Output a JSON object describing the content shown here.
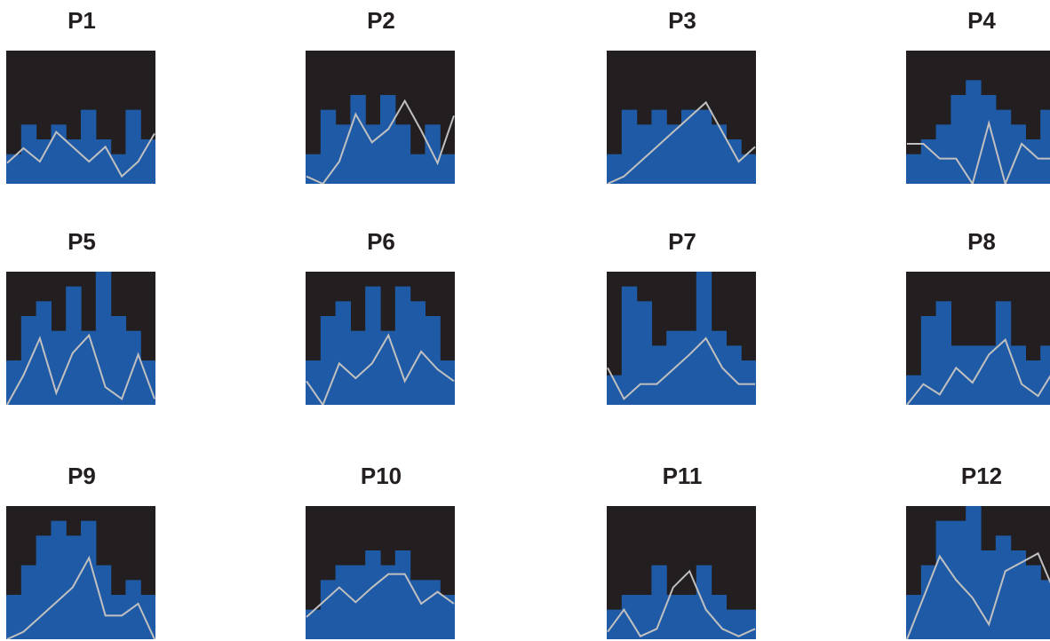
{
  "colors": {
    "background": "#231f20",
    "bar": "#1f5aa6",
    "line": "#c0c0c0",
    "title": "#231f20"
  },
  "chart_data": [
    {
      "type": "bar",
      "title": "P1",
      "ylim": [
        0,
        9
      ],
      "bars": [
        2,
        4,
        3,
        4,
        3,
        5,
        3,
        2,
        5,
        3
      ],
      "line": [
        1.4,
        2.4,
        1.5,
        3.5,
        2.5,
        1.5,
        2.5,
        0.5,
        1.5,
        3.4
      ]
    },
    {
      "type": "bar",
      "title": "P2",
      "ylim": [
        0,
        9
      ],
      "bars": [
        2,
        5,
        4,
        6,
        4,
        6,
        4,
        2,
        4,
        2
      ],
      "line": [
        0.5,
        0,
        1.5,
        4.7,
        2.8,
        3.7,
        5.6,
        3.6,
        1.4,
        4.6
      ]
    },
    {
      "type": "bar",
      "title": "P3",
      "ylim": [
        0,
        9
      ],
      "bars": [
        2,
        5,
        4,
        5,
        4,
        5,
        5,
        4,
        3,
        2
      ],
      "line": [
        0,
        0.5,
        1.5,
        2.5,
        3.5,
        4.5,
        5.5,
        3.5,
        1.5,
        2.5
      ]
    },
    {
      "type": "bar",
      "title": "P4",
      "ylim": [
        0,
        9
      ],
      "bars": [
        2,
        3,
        4,
        6,
        7,
        6,
        5,
        4,
        3,
        5
      ],
      "line": [
        2.7,
        2.7,
        1.7,
        1.7,
        0,
        4.1,
        0,
        2.7,
        1.7,
        1.7
      ]
    },
    {
      "type": "bar",
      "title": "P5",
      "ylim": [
        0,
        9
      ],
      "bars": [
        3,
        6,
        7,
        5,
        8,
        5,
        9,
        6,
        5,
        3
      ],
      "line": [
        0,
        2,
        4.5,
        0.8,
        3.5,
        4.7,
        1.2,
        0.4,
        3.4,
        0.4
      ]
    },
    {
      "type": "bar",
      "title": "P6",
      "ylim": [
        0,
        9
      ],
      "bars": [
        3,
        6,
        7,
        5,
        8,
        5,
        8,
        7,
        6,
        3
      ],
      "line": [
        1.6,
        0,
        2.8,
        1.8,
        2.8,
        4.7,
        1.6,
        3.6,
        2.4,
        1.6
      ]
    },
    {
      "type": "bar",
      "title": "P7",
      "ylim": [
        0,
        9
      ],
      "bars": [
        2,
        8,
        7,
        4,
        5,
        5,
        9,
        5,
        4,
        3
      ],
      "line": [
        2.5,
        0.4,
        1.4,
        1.4,
        2.4,
        3.4,
        4.5,
        2.5,
        1.4,
        1.4
      ]
    },
    {
      "type": "bar",
      "title": "P8",
      "ylim": [
        0,
        9
      ],
      "bars": [
        2,
        6,
        7,
        4,
        4,
        4,
        7,
        4,
        3,
        4
      ],
      "line": [
        0,
        1.4,
        0.7,
        2.5,
        1.5,
        3.4,
        4.4,
        1.4,
        0.6,
        2.4
      ]
    },
    {
      "type": "bar",
      "title": "P9",
      "ylim": [
        0,
        9
      ],
      "bars": [
        3,
        5,
        7,
        8,
        7,
        8,
        5,
        3,
        4,
        3
      ],
      "line": [
        0,
        0.5,
        1.5,
        2.5,
        3.5,
        5.5,
        1.6,
        1.6,
        2.4,
        0
      ]
    },
    {
      "type": "bar",
      "title": "P10",
      "ylim": [
        0,
        9
      ],
      "bars": [
        2,
        4,
        5,
        5,
        6,
        5,
        6,
        4,
        4,
        3
      ],
      "line": [
        1.5,
        2.5,
        3.5,
        2.5,
        3.5,
        4.4,
        4.4,
        2.4,
        3.2,
        2.4
      ]
    },
    {
      "type": "bar",
      "title": "P11",
      "ylim": [
        0,
        9
      ],
      "bars": [
        2,
        3,
        3,
        5,
        3,
        3,
        5,
        3,
        2,
        2
      ],
      "line": [
        0.5,
        2,
        0.2,
        0.7,
        3.5,
        4.6,
        2,
        0.7,
        0.2,
        0.7
      ]
    },
    {
      "type": "bar",
      "title": "P12",
      "ylim": [
        0,
        9
      ],
      "bars": [
        3,
        5,
        8,
        8,
        9,
        6,
        7,
        6,
        5,
        4
      ],
      "line": [
        0,
        2.8,
        5.6,
        4,
        2.8,
        1,
        4.6,
        5.2,
        5.8,
        3.2
      ]
    }
  ]
}
